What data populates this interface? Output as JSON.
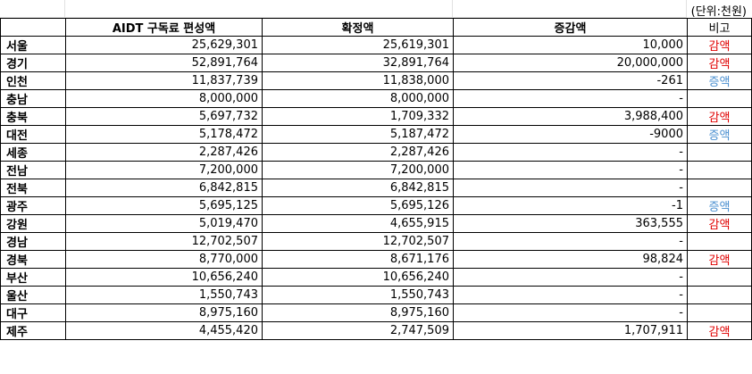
{
  "unit_note": "(단위:천원)",
  "headers": [
    "",
    "AIDT 구독료 편성액",
    "확정액",
    "증감액",
    "비고"
  ],
  "rows": [
    {
      "region": "서울",
      "budget": "25,629,301",
      "confirmed": "25,619,301",
      "diff": "10,000",
      "note": "감액",
      "note_type": "dec"
    },
    {
      "region": "경기",
      "budget": "52,891,764",
      "confirmed": "32,891,764",
      "diff": "20,000,000",
      "note": "감액",
      "note_type": "dec"
    },
    {
      "region": "인천",
      "budget": "11,837,739",
      "confirmed": "11,838,000",
      "diff": "-261",
      "note": "증액",
      "note_type": "inc"
    },
    {
      "region": "충남",
      "budget": "8,000,000",
      "confirmed": "8,000,000",
      "diff": "-",
      "note": "",
      "note_type": ""
    },
    {
      "region": "충북",
      "budget": "5,697,732",
      "confirmed": "1,709,332",
      "diff": "3,988,400",
      "note": "감액",
      "note_type": "dec"
    },
    {
      "region": "대전",
      "budget": "5,178,472",
      "confirmed": "5,187,472",
      "diff": "-9000",
      "note": "증액",
      "note_type": "inc"
    },
    {
      "region": "세종",
      "budget": "2,287,426",
      "confirmed": "2,287,426",
      "diff": "-",
      "note": "",
      "note_type": ""
    },
    {
      "region": "전남",
      "budget": "7,200,000",
      "confirmed": "7,200,000",
      "diff": "-",
      "note": "",
      "note_type": ""
    },
    {
      "region": "전북",
      "budget": "6,842,815",
      "confirmed": "6,842,815",
      "diff": "-",
      "note": "",
      "note_type": ""
    },
    {
      "region": "광주",
      "budget": "5,695,125",
      "confirmed": "5,695,126",
      "diff": "-1",
      "note": "증액",
      "note_type": "inc"
    },
    {
      "region": "강원",
      "budget": "5,019,470",
      "confirmed": "4,655,915",
      "diff": "363,555",
      "note": "감액",
      "note_type": "dec"
    },
    {
      "region": "경남",
      "budget": "12,702,507",
      "confirmed": "12,702,507",
      "diff": "-",
      "note": "",
      "note_type": ""
    },
    {
      "region": "경북",
      "budget": "8,770,000",
      "confirmed": "8,671,176",
      "diff": "98,824",
      "note": "감액",
      "note_type": "dec"
    },
    {
      "region": "부산",
      "budget": "10,656,240",
      "confirmed": "10,656,240",
      "diff": "-",
      "note": "",
      "note_type": ""
    },
    {
      "region": "울산",
      "budget": "1,550,743",
      "confirmed": "1,550,743",
      "diff": "-",
      "note": "",
      "note_type": ""
    },
    {
      "region": "대구",
      "budget": "8,975,160",
      "confirmed": "8,975,160",
      "diff": "-",
      "note": "",
      "note_type": ""
    },
    {
      "region": "제주",
      "budget": "4,455,420",
      "confirmed": "2,747,509",
      "diff": "1,707,911",
      "note": "감액",
      "note_type": "dec"
    }
  ],
  "colors": {
    "decrease": "#e00000",
    "increase": "#4a8fd0"
  }
}
